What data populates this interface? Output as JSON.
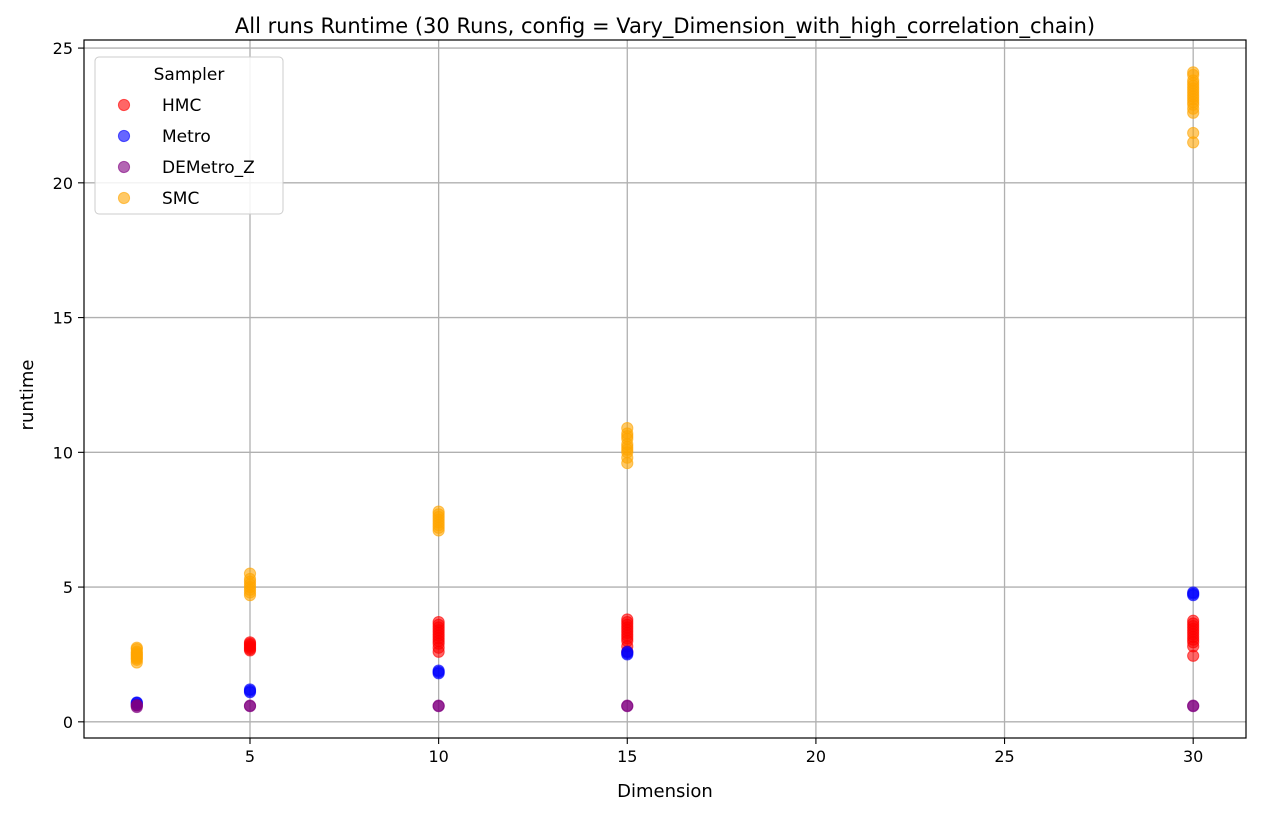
{
  "chart_data": {
    "type": "scatter",
    "title": "All runs Runtime (30 Runs, config = Vary_Dimension_with_high_correlation_chain)",
    "xlabel": "Dimension",
    "ylabel": "runtime",
    "xlim": [
      0.6,
      31.4
    ],
    "ylim": [
      -0.6,
      25.3
    ],
    "xticks": [
      5,
      10,
      15,
      20,
      25,
      30
    ],
    "yticks": [
      0,
      5,
      10,
      15,
      20,
      25
    ],
    "grid": true,
    "legend": {
      "title": "Sampler",
      "placement": "upper-left"
    },
    "marker_alpha": 0.6,
    "series": [
      {
        "name": "HMC",
        "color": "#ff0000",
        "points": [
          [
            5,
            2.65
          ],
          [
            5,
            2.7
          ],
          [
            5,
            2.75
          ],
          [
            5,
            2.8
          ],
          [
            5,
            2.85
          ],
          [
            5,
            2.9
          ],
          [
            5,
            2.95
          ],
          [
            10,
            2.6
          ],
          [
            10,
            2.75
          ],
          [
            10,
            2.9
          ],
          [
            10,
            3.0
          ],
          [
            10,
            3.1
          ],
          [
            10,
            3.2
          ],
          [
            10,
            3.3
          ],
          [
            10,
            3.4
          ],
          [
            10,
            3.5
          ],
          [
            10,
            3.6
          ],
          [
            10,
            3.7
          ],
          [
            15,
            2.6
          ],
          [
            15,
            2.8
          ],
          [
            15,
            3.0
          ],
          [
            15,
            3.1
          ],
          [
            15,
            3.2
          ],
          [
            15,
            3.3
          ],
          [
            15,
            3.4
          ],
          [
            15,
            3.5
          ],
          [
            15,
            3.6
          ],
          [
            15,
            3.7
          ],
          [
            15,
            3.8
          ],
          [
            30,
            2.45
          ],
          [
            30,
            2.8
          ],
          [
            30,
            2.95
          ],
          [
            30,
            3.05
          ],
          [
            30,
            3.15
          ],
          [
            30,
            3.25
          ],
          [
            30,
            3.35
          ],
          [
            30,
            3.45
          ],
          [
            30,
            3.55
          ],
          [
            30,
            3.65
          ],
          [
            30,
            3.75
          ]
        ]
      },
      {
        "name": "Metro",
        "color": "#0000ff",
        "points": [
          [
            2,
            0.65
          ],
          [
            2,
            0.7
          ],
          [
            2,
            0.72
          ],
          [
            5,
            1.1
          ],
          [
            5,
            1.15
          ],
          [
            5,
            1.2
          ],
          [
            10,
            1.8
          ],
          [
            10,
            1.85
          ],
          [
            10,
            1.9
          ],
          [
            15,
            2.5
          ],
          [
            15,
            2.55
          ],
          [
            15,
            2.6
          ],
          [
            30,
            4.7
          ],
          [
            30,
            4.75
          ],
          [
            30,
            4.8
          ]
        ]
      },
      {
        "name": "DEMetro_Z",
        "color": "#800080",
        "points": [
          [
            2,
            0.55
          ],
          [
            2,
            0.6
          ],
          [
            2,
            0.62
          ],
          [
            5,
            0.58
          ],
          [
            5,
            0.6
          ],
          [
            10,
            0.58
          ],
          [
            10,
            0.6
          ],
          [
            15,
            0.58
          ],
          [
            15,
            0.6
          ],
          [
            30,
            0.58
          ],
          [
            30,
            0.6
          ]
        ]
      },
      {
        "name": "SMC",
        "color": "#ffa500",
        "points": [
          [
            2,
            2.2
          ],
          [
            2,
            2.3
          ],
          [
            2,
            2.35
          ],
          [
            2,
            2.4
          ],
          [
            2,
            2.45
          ],
          [
            2,
            2.5
          ],
          [
            2,
            2.55
          ],
          [
            2,
            2.6
          ],
          [
            2,
            2.7
          ],
          [
            2,
            2.75
          ],
          [
            5,
            4.7
          ],
          [
            5,
            4.8
          ],
          [
            5,
            4.9
          ],
          [
            5,
            5.0
          ],
          [
            5,
            5.1
          ],
          [
            5,
            5.2
          ],
          [
            5,
            5.3
          ],
          [
            5,
            5.5
          ],
          [
            10,
            7.1
          ],
          [
            10,
            7.2
          ],
          [
            10,
            7.3
          ],
          [
            10,
            7.4
          ],
          [
            10,
            7.5
          ],
          [
            10,
            7.6
          ],
          [
            10,
            7.7
          ],
          [
            10,
            7.8
          ],
          [
            15,
            9.6
          ],
          [
            15,
            9.8
          ],
          [
            15,
            10.0
          ],
          [
            15,
            10.1
          ],
          [
            15,
            10.2
          ],
          [
            15,
            10.3
          ],
          [
            15,
            10.5
          ],
          [
            15,
            10.6
          ],
          [
            15,
            10.7
          ],
          [
            15,
            10.9
          ],
          [
            30,
            21.5
          ],
          [
            30,
            21.85
          ],
          [
            30,
            22.6
          ],
          [
            30,
            22.75
          ],
          [
            30,
            22.9
          ],
          [
            30,
            23.0
          ],
          [
            30,
            23.1
          ],
          [
            30,
            23.2
          ],
          [
            30,
            23.3
          ],
          [
            30,
            23.4
          ],
          [
            30,
            23.5
          ],
          [
            30,
            23.6
          ],
          [
            30,
            23.7
          ],
          [
            30,
            23.8
          ],
          [
            30,
            24.0
          ],
          [
            30,
            24.1
          ]
        ]
      }
    ]
  }
}
